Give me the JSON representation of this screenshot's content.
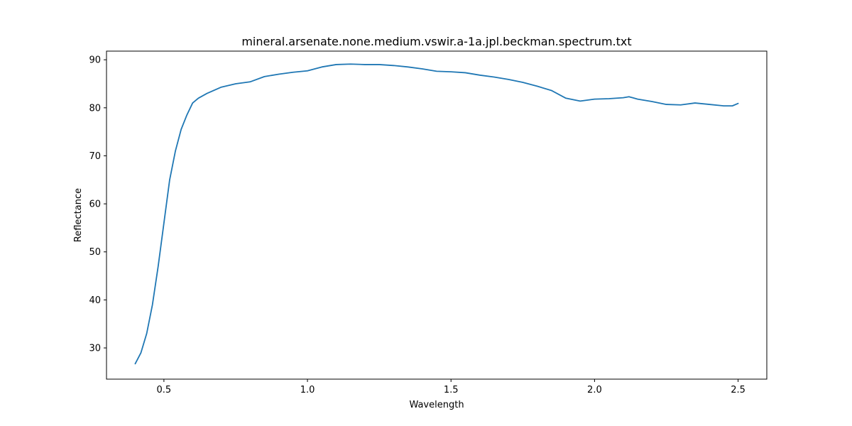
{
  "chart_data": {
    "type": "line",
    "title": "mineral.arsenate.none.medium.vswir.a-1a.jpl.beckman.spectrum.txt",
    "xlabel": "Wavelength",
    "ylabel": "Reflectance",
    "xlim": [
      0.3,
      2.6
    ],
    "ylim": [
      23.5,
      91.8
    ],
    "xticks": [
      0.5,
      1.0,
      1.5,
      2.0,
      2.5
    ],
    "xtick_labels": [
      "0.5",
      "1.0",
      "1.5",
      "2.0",
      "2.5"
    ],
    "yticks": [
      30,
      40,
      50,
      60,
      70,
      80,
      90
    ],
    "ytick_labels": [
      "30",
      "40",
      "50",
      "60",
      "70",
      "80",
      "90"
    ],
    "grid": false,
    "legend": "none",
    "series": [
      {
        "color": "#1f77b4",
        "x": [
          0.4,
          0.42,
          0.44,
          0.46,
          0.48,
          0.5,
          0.52,
          0.54,
          0.56,
          0.58,
          0.6,
          0.62,
          0.65,
          0.7,
          0.75,
          0.8,
          0.85,
          0.9,
          0.95,
          1.0,
          1.05,
          1.1,
          1.15,
          1.2,
          1.25,
          1.3,
          1.35,
          1.4,
          1.45,
          1.5,
          1.55,
          1.6,
          1.65,
          1.7,
          1.75,
          1.8,
          1.85,
          1.9,
          1.95,
          2.0,
          2.05,
          2.1,
          2.12,
          2.15,
          2.2,
          2.25,
          2.3,
          2.35,
          2.4,
          2.45,
          2.48,
          2.5
        ],
        "y": [
          26.7,
          29.0,
          33.0,
          39.0,
          47.0,
          56.0,
          65.0,
          71.0,
          75.5,
          78.5,
          81.0,
          82.0,
          83.0,
          84.3,
          85.0,
          85.4,
          86.5,
          87.0,
          87.4,
          87.7,
          88.5,
          89.0,
          89.1,
          89.0,
          89.0,
          88.8,
          88.5,
          88.1,
          87.6,
          87.5,
          87.3,
          86.8,
          86.4,
          85.9,
          85.3,
          84.5,
          83.6,
          82.0,
          81.4,
          81.8,
          81.9,
          82.1,
          82.3,
          81.8,
          81.3,
          80.7,
          80.6,
          81.0,
          80.7,
          80.4,
          80.4,
          80.9
        ]
      }
    ]
  }
}
